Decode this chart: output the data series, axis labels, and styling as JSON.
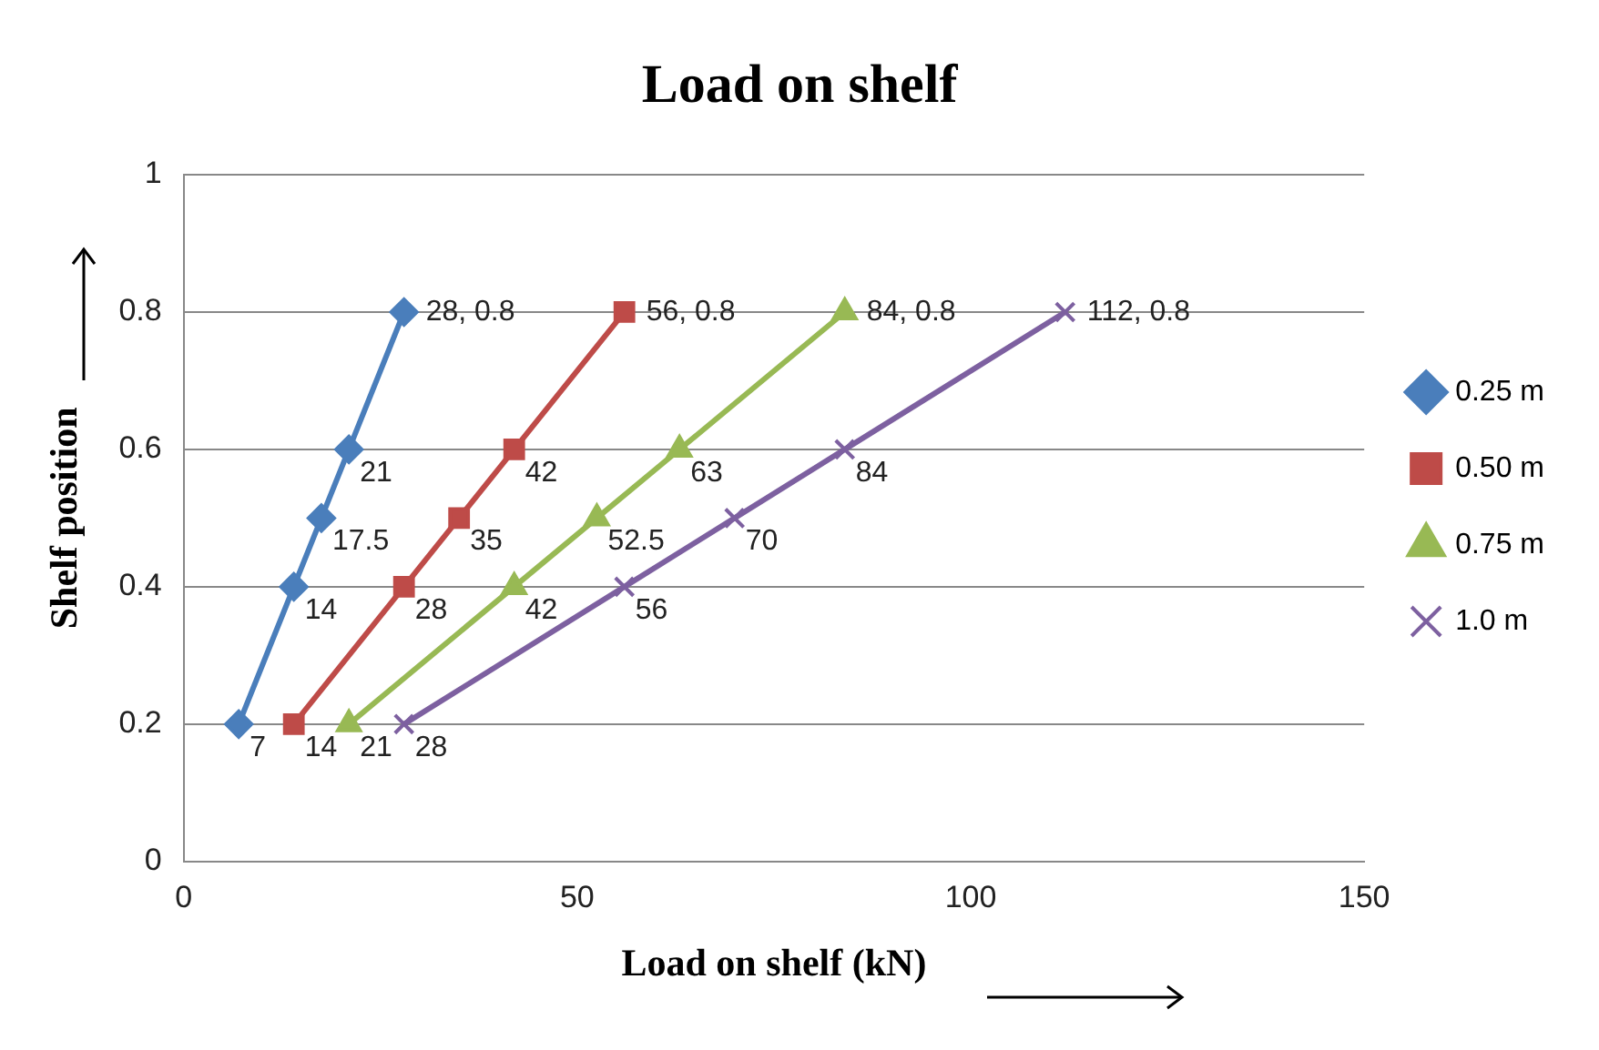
{
  "chart_data": {
    "type": "line",
    "title": "Load on shelf",
    "xlabel": "Load on shelf (kN)",
    "ylabel": "Shelf position",
    "xlim": [
      0,
      150
    ],
    "xticks": [
      0,
      50,
      100,
      150
    ],
    "ylim": [
      0,
      1
    ],
    "yticks": [
      0,
      0.2,
      0.4,
      0.6,
      0.8,
      1
    ],
    "grid": "y",
    "legend": "right",
    "series": [
      {
        "name": "0.25 m",
        "color": "#4a7ebb",
        "marker": "diamond",
        "x": [
          7,
          14,
          17.5,
          21,
          28
        ],
        "values": [
          0.2,
          0.4,
          0.5,
          0.6,
          0.8
        ]
      },
      {
        "name": "0.50 m",
        "color": "#be4b48",
        "marker": "square",
        "x": [
          14,
          28,
          35,
          42,
          56
        ],
        "values": [
          0.2,
          0.4,
          0.5,
          0.6,
          0.8
        ]
      },
      {
        "name": "0.75 m",
        "color": "#98b954",
        "marker": "triangle",
        "x": [
          21,
          42,
          52.5,
          63,
          84
        ],
        "values": [
          0.2,
          0.4,
          0.5,
          0.6,
          0.8
        ]
      },
      {
        "name": "1.0 m",
        "color": "#7d60a0",
        "marker": "cross",
        "x": [
          28,
          56,
          70,
          84,
          112
        ],
        "values": [
          0.2,
          0.4,
          0.5,
          0.6,
          0.8
        ]
      }
    ],
    "annotations": [
      {
        "text": "7",
        "x": 7,
        "y": 0.2
      },
      {
        "text": "14",
        "x": 14,
        "y": 0.4
      },
      {
        "text": "17.5",
        "x": 17.5,
        "y": 0.5
      },
      {
        "text": "21",
        "x": 21,
        "y": 0.6
      },
      {
        "text": "28, 0.8",
        "x": 28,
        "y": 0.8
      },
      {
        "text": "14",
        "x": 14,
        "y": 0.2
      },
      {
        "text": "28",
        "x": 28,
        "y": 0.4
      },
      {
        "text": "35",
        "x": 35,
        "y": 0.5
      },
      {
        "text": "42",
        "x": 42,
        "y": 0.6
      },
      {
        "text": "56, 0.8",
        "x": 56,
        "y": 0.8
      },
      {
        "text": "21",
        "x": 21,
        "y": 0.2
      },
      {
        "text": "42",
        "x": 42,
        "y": 0.4
      },
      {
        "text": "52.5",
        "x": 52.5,
        "y": 0.5
      },
      {
        "text": "63",
        "x": 63,
        "y": 0.6
      },
      {
        "text": "84, 0.8",
        "x": 84,
        "y": 0.8
      },
      {
        "text": "28",
        "x": 28,
        "y": 0.2
      },
      {
        "text": "56",
        "x": 56,
        "y": 0.4
      },
      {
        "text": "70",
        "x": 70,
        "y": 0.5
      },
      {
        "text": "84",
        "x": 84,
        "y": 0.6
      },
      {
        "text": "112, 0.8",
        "x": 112,
        "y": 0.8
      }
    ]
  }
}
